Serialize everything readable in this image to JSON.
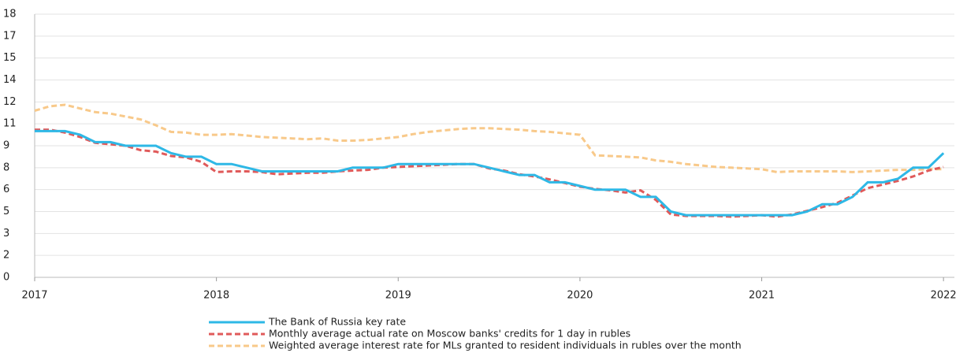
{
  "chart_data": {
    "type": "line",
    "x": [
      2017,
      2017.083,
      2017.167,
      2017.25,
      2017.333,
      2017.417,
      2017.5,
      2017.583,
      2017.667,
      2017.75,
      2017.833,
      2017.917,
      2018,
      2018.083,
      2018.167,
      2018.25,
      2018.333,
      2018.417,
      2018.5,
      2018.583,
      2018.667,
      2018.75,
      2018.833,
      2018.917,
      2019,
      2019.083,
      2019.167,
      2019.25,
      2019.333,
      2019.417,
      2019.5,
      2019.583,
      2019.667,
      2019.75,
      2019.833,
      2019.917,
      2020,
      2020.083,
      2020.167,
      2020.25,
      2020.333,
      2020.417,
      2020.5,
      2020.583,
      2020.667,
      2020.75,
      2020.833,
      2020.917,
      2021,
      2021.083,
      2021.167,
      2021.25,
      2021.333,
      2021.417,
      2021.5,
      2021.583,
      2021.667,
      2021.75,
      2021.833,
      2021.917,
      2022
    ],
    "series": [
      {
        "name": "The Bank of Russia key rate",
        "color": "#2eb8e6",
        "dash": false,
        "values": [
          10,
          10,
          10,
          9.75,
          9.25,
          9.25,
          9,
          9,
          9,
          8.5,
          8.25,
          8.25,
          7.75,
          7.75,
          7.5,
          7.25,
          7.25,
          7.25,
          7.25,
          7.25,
          7.25,
          7.5,
          7.5,
          7.5,
          7.75,
          7.75,
          7.75,
          7.75,
          7.75,
          7.75,
          7.5,
          7.25,
          7,
          7,
          6.5,
          6.5,
          6.25,
          6,
          6,
          6,
          5.5,
          5.5,
          4.5,
          4.25,
          4.25,
          4.25,
          4.25,
          4.25,
          4.25,
          4.25,
          4.25,
          4.5,
          5,
          5,
          5.5,
          6.5,
          6.5,
          6.75,
          7.5,
          7.5,
          8.5
        ]
      },
      {
        "name": "Monthly average actual rate on Moscow banks' credits for 1 day in rubles",
        "color": "#e05a5a",
        "dash": true,
        "values": [
          10.1,
          10.1,
          9.9,
          9.6,
          9.2,
          9.1,
          9.0,
          8.7,
          8.6,
          8.3,
          8.2,
          7.9,
          7.2,
          7.25,
          7.25,
          7.2,
          7.05,
          7.1,
          7.15,
          7.15,
          7.25,
          7.3,
          7.35,
          7.5,
          7.55,
          7.6,
          7.65,
          7.7,
          7.75,
          7.75,
          7.45,
          7.3,
          7.05,
          6.9,
          6.7,
          6.45,
          6.2,
          6.05,
          5.95,
          5.8,
          5.95,
          5.3,
          4.3,
          4.2,
          4.2,
          4.2,
          4.15,
          4.2,
          4.25,
          4.15,
          4.3,
          4.55,
          4.8,
          5.1,
          5.6,
          6.1,
          6.35,
          6.6,
          6.9,
          7.3,
          7.55
        ]
      },
      {
        "name": "Weighted average interest rate for MLs granted to resident individuals in rubles over the month",
        "color": "#f8c98a",
        "dash": true,
        "values": [
          11.4,
          11.7,
          11.8,
          11.55,
          11.3,
          11.2,
          11.0,
          10.8,
          10.4,
          9.95,
          9.9,
          9.75,
          9.75,
          9.8,
          9.7,
          9.6,
          9.55,
          9.5,
          9.45,
          9.5,
          9.35,
          9.35,
          9.4,
          9.5,
          9.6,
          9.8,
          9.95,
          10.05,
          10.15,
          10.2,
          10.2,
          10.15,
          10.1,
          10.0,
          9.95,
          9.85,
          9.75,
          8.35,
          8.3,
          8.25,
          8.2,
          8.0,
          7.9,
          7.75,
          7.65,
          7.55,
          7.5,
          7.45,
          7.4,
          7.2,
          7.25,
          7.25,
          7.25,
          7.25,
          7.2,
          7.25,
          7.3,
          7.35,
          7.35,
          7.4,
          7.4
        ]
      }
    ],
    "xlim": [
      2017,
      2022.06
    ],
    "xticks": [
      2017,
      2018,
      2019,
      2020,
      2021,
      2022
    ],
    "ylim": [
      0,
      18
    ],
    "yticks": [
      0,
      {
        "value": 1.5,
        "label": "2"
      },
      3,
      {
        "value": 4.5,
        "label": "5"
      },
      6,
      {
        "value": 7.5,
        "label": "8"
      },
      9,
      {
        "value": 10.5,
        "label": "11"
      },
      12,
      {
        "value": 13.5,
        "label": "14"
      },
      15,
      {
        "value": 16.5,
        "label": "17"
      },
      18
    ],
    "grid": true,
    "legend": "bottom"
  }
}
